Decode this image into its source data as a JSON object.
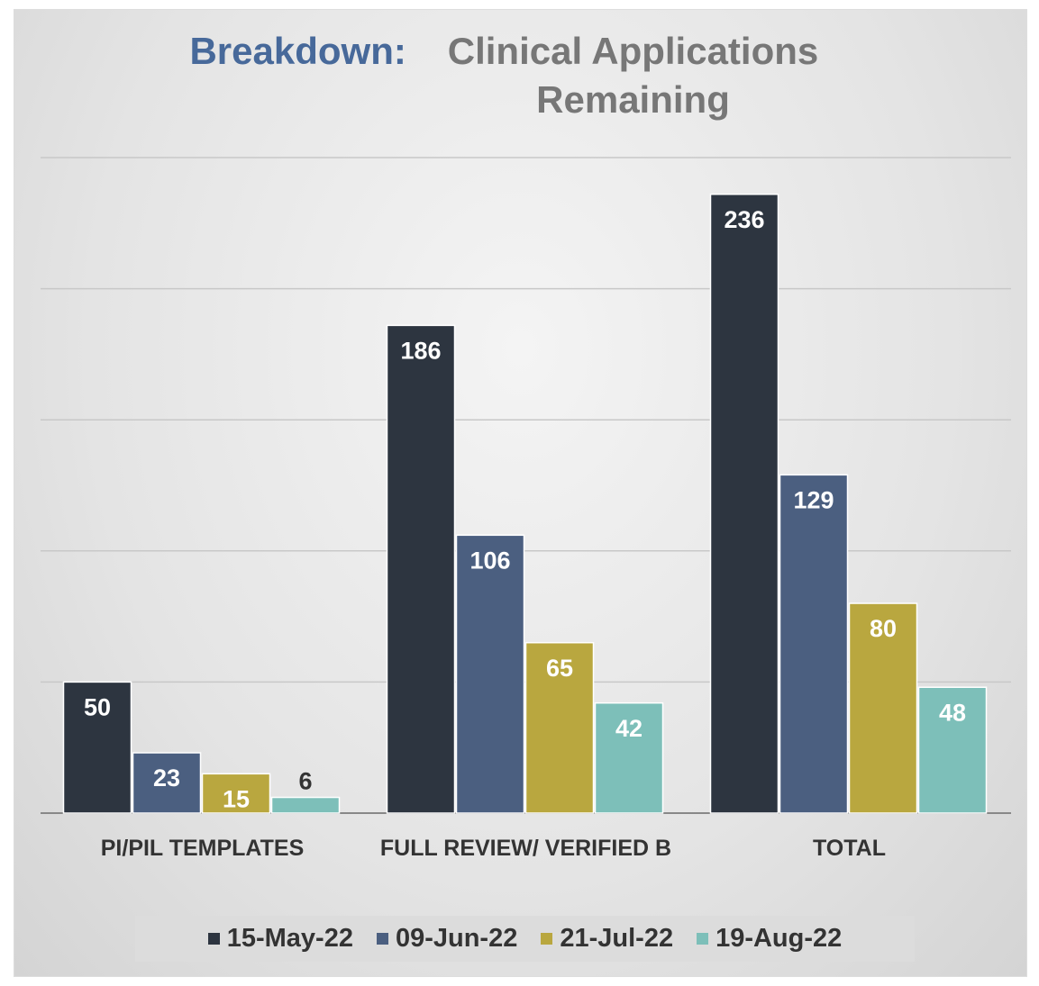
{
  "chart_data": {
    "type": "bar",
    "title_highlight": "Breakdown:",
    "title": "Clinical Applications Remaining",
    "categories": [
      "PI/PIL TEMPLATES",
      "FULL REVIEW/ VERIFIED B",
      "TOTAL"
    ],
    "series": [
      {
        "name": "15-May-22",
        "color": "#2d3540",
        "values": [
          50,
          186,
          236
        ]
      },
      {
        "name": "09-Jun-22",
        "color": "#4b5f80",
        "values": [
          23,
          106,
          129
        ]
      },
      {
        "name": "21-Jul-22",
        "color": "#b9a73f",
        "values": [
          15,
          65,
          80
        ]
      },
      {
        "name": "19-Aug-22",
        "color": "#7dbfb9",
        "values": [
          6,
          42,
          48
        ]
      }
    ],
    "ylim": [
      0,
      250
    ],
    "yticks": [
      0,
      50,
      100,
      150,
      200,
      250
    ],
    "grid": true,
    "legend": "bottom"
  }
}
